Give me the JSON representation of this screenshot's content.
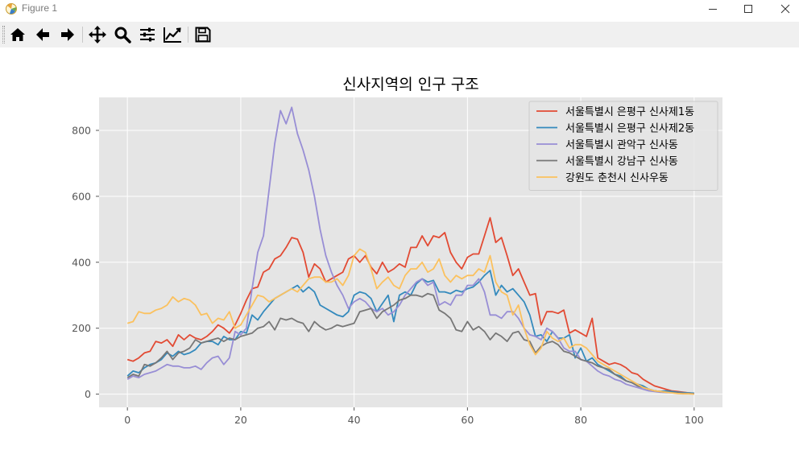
{
  "window": {
    "title": "Figure 1"
  },
  "toolbar": {
    "buttons": [
      {
        "name": "home-button",
        "icon": "home-icon"
      },
      {
        "name": "back-button",
        "icon": "arrow-left-icon"
      },
      {
        "name": "forward-button",
        "icon": "arrow-right-icon"
      },
      {
        "name": "pan-button",
        "icon": "move-icon"
      },
      {
        "name": "zoom-button",
        "icon": "magnifier-icon"
      },
      {
        "name": "subplots-button",
        "icon": "sliders-icon"
      },
      {
        "name": "axes-edit-button",
        "icon": "line-chart-icon"
      },
      {
        "name": "save-button",
        "icon": "floppy-disk-icon"
      }
    ]
  },
  "chart_data": {
    "type": "line",
    "title": "신사지역의 인구 구조",
    "xlabel": "",
    "ylabel": "",
    "xlim": [
      -5,
      105
    ],
    "ylim": [
      -40,
      900
    ],
    "xticks": [
      0,
      20,
      40,
      60,
      80,
      100
    ],
    "yticks": [
      0,
      200,
      400,
      600,
      800
    ],
    "grid": true,
    "legend_position": "upper right",
    "x": [
      0,
      1,
      2,
      3,
      4,
      5,
      6,
      7,
      8,
      9,
      10,
      11,
      12,
      13,
      14,
      15,
      16,
      17,
      18,
      19,
      20,
      21,
      22,
      23,
      24,
      25,
      26,
      27,
      28,
      29,
      30,
      31,
      32,
      33,
      34,
      35,
      36,
      37,
      38,
      39,
      40,
      41,
      42,
      43,
      44,
      45,
      46,
      47,
      48,
      49,
      50,
      51,
      52,
      53,
      54,
      55,
      56,
      57,
      58,
      59,
      60,
      61,
      62,
      63,
      64,
      65,
      66,
      67,
      68,
      69,
      70,
      71,
      72,
      73,
      74,
      75,
      76,
      77,
      78,
      79,
      80,
      81,
      82,
      83,
      84,
      85,
      86,
      87,
      88,
      89,
      90,
      91,
      92,
      93,
      94,
      95,
      96,
      97,
      98,
      99,
      100
    ],
    "series": [
      {
        "name": "서울특별시 은평구 신사제1동",
        "color": "#e24a33",
        "values": [
          105,
          100,
          110,
          125,
          130,
          160,
          155,
          165,
          145,
          180,
          165,
          180,
          170,
          165,
          175,
          190,
          210,
          200,
          185,
          210,
          245,
          285,
          320,
          325,
          370,
          380,
          410,
          420,
          445,
          475,
          470,
          430,
          355,
          395,
          380,
          340,
          350,
          360,
          370,
          410,
          420,
          400,
          420,
          385,
          365,
          400,
          370,
          380,
          395,
          385,
          445,
          445,
          480,
          450,
          480,
          475,
          490,
          430,
          400,
          380,
          415,
          425,
          425,
          480,
          535,
          460,
          475,
          420,
          360,
          380,
          340,
          300,
          305,
          210,
          250,
          250,
          245,
          255,
          185,
          195,
          185,
          175,
          230,
          110,
          100,
          90,
          95,
          90,
          80,
          65,
          60,
          45,
          35,
          25,
          20,
          15,
          10,
          8,
          6,
          4,
          2
        ]
      },
      {
        "name": "서울특별시 은평구 신사제2동",
        "color": "#348abd",
        "values": [
          55,
          70,
          65,
          80,
          90,
          95,
          105,
          125,
          115,
          130,
          120,
          125,
          135,
          155,
          160,
          160,
          150,
          175,
          165,
          165,
          190,
          185,
          240,
          225,
          250,
          270,
          290,
          300,
          310,
          320,
          330,
          310,
          325,
          310,
          270,
          260,
          250,
          240,
          235,
          250,
          300,
          310,
          305,
          290,
          250,
          275,
          300,
          220,
          300,
          310,
          300,
          335,
          350,
          340,
          345,
          310,
          310,
          305,
          315,
          310,
          320,
          325,
          340,
          360,
          375,
          300,
          330,
          310,
          320,
          300,
          280,
          240,
          175,
          180,
          160,
          190,
          170,
          170,
          180,
          110,
          140,
          100,
          110,
          90,
          80,
          70,
          60,
          55,
          40,
          35,
          30,
          25,
          15,
          10,
          8,
          10,
          8,
          6,
          5,
          4,
          3
        ]
      },
      {
        "name": "서울특별시 관악구 신사동",
        "color": "#988ed5",
        "values": [
          45,
          55,
          50,
          60,
          65,
          70,
          80,
          90,
          85,
          85,
          80,
          80,
          85,
          75,
          95,
          110,
          115,
          90,
          110,
          190,
          180,
          200,
          320,
          430,
          480,
          620,
          760,
          860,
          820,
          870,
          790,
          740,
          680,
          600,
          500,
          420,
          370,
          330,
          300,
          260,
          280,
          290,
          280,
          260,
          250,
          260,
          240,
          250,
          270,
          300,
          320,
          340,
          350,
          330,
          340,
          270,
          280,
          270,
          300,
          300,
          330,
          330,
          350,
          310,
          240,
          240,
          230,
          250,
          250,
          230,
          200,
          180,
          175,
          165,
          200,
          190,
          170,
          140,
          130,
          130,
          105,
          100,
          85,
          70,
          60,
          55,
          45,
          40,
          30,
          25,
          20,
          15,
          10,
          8,
          6,
          5,
          4,
          3,
          2,
          2,
          1
        ]
      },
      {
        "name": "서울특별시 강남구 신사동",
        "color": "#777777",
        "values": [
          50,
          60,
          55,
          90,
          85,
          95,
          110,
          130,
          105,
          125,
          130,
          140,
          165,
          155,
          160,
          165,
          170,
          160,
          170,
          165,
          175,
          180,
          185,
          200,
          205,
          220,
          195,
          230,
          225,
          230,
          220,
          215,
          190,
          220,
          205,
          195,
          200,
          210,
          205,
          210,
          215,
          250,
          255,
          260,
          230,
          250,
          260,
          270,
          285,
          290,
          300,
          300,
          295,
          305,
          300,
          255,
          245,
          230,
          195,
          190,
          220,
          195,
          205,
          190,
          165,
          185,
          175,
          160,
          185,
          190,
          165,
          160,
          125,
          145,
          155,
          160,
          150,
          130,
          125,
          115,
          105,
          100,
          95,
          85,
          80,
          75,
          60,
          50,
          40,
          35,
          25,
          20,
          15,
          10,
          8,
          6,
          5,
          4,
          3,
          2,
          1
        ]
      },
      {
        "name": "강원도 춘천시 신사우동",
        "color": "#fbc15e",
        "values": [
          215,
          220,
          250,
          245,
          245,
          255,
          260,
          270,
          295,
          280,
          290,
          285,
          270,
          240,
          245,
          215,
          230,
          225,
          250,
          200,
          210,
          240,
          270,
          300,
          295,
          280,
          290,
          300,
          310,
          320,
          310,
          330,
          350,
          355,
          355,
          340,
          340,
          350,
          330,
          360,
          420,
          440,
          430,
          380,
          320,
          340,
          355,
          330,
          320,
          360,
          380,
          380,
          400,
          370,
          380,
          410,
          360,
          340,
          360,
          350,
          360,
          360,
          380,
          370,
          420,
          340,
          310,
          300,
          240,
          270,
          200,
          150,
          120,
          140,
          190,
          170,
          160,
          170,
          140,
          150,
          150,
          140,
          120,
          100,
          90,
          80,
          70,
          60,
          50,
          40,
          30,
          20,
          15,
          10,
          8,
          6,
          4,
          2,
          1,
          1,
          0
        ]
      }
    ]
  }
}
